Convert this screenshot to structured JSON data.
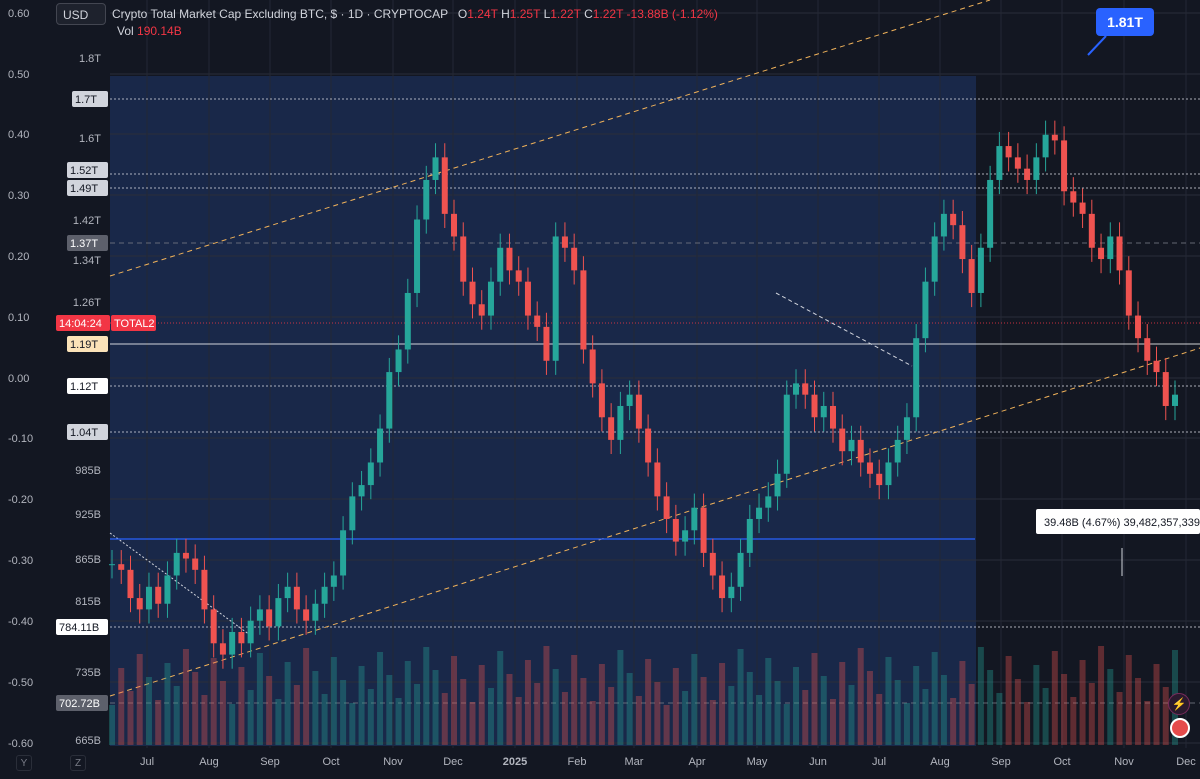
{
  "toolbar": {
    "currency_button": "USD"
  },
  "legend": {
    "title": "Crypto Total Market Cap Excluding BTC, $ · 1D · CRYPTOCAP",
    "open_label": "O",
    "open": "1.24T",
    "high_label": "H",
    "high": "1.25T",
    "low_label": "L",
    "low": "1.22T",
    "close_label": "C",
    "close": "1.22T",
    "change": "-13.88B (-1.12%)",
    "vol_label": "Vol",
    "vol": "190.14B"
  },
  "bottom_controls": {
    "y": "Y",
    "z": "Z"
  },
  "chart_data": {
    "type": "candlestick",
    "x_labels": [
      "Jul",
      "Aug",
      "Sep",
      "Oct",
      "Nov",
      "Dec",
      "2025",
      "Feb",
      "Mar",
      "Apr",
      "May",
      "Jun",
      "Jul",
      "Aug",
      "Sep",
      "Oct",
      "Nov",
      "Dec"
    ],
    "left_axis_ticks": [
      "0.60",
      "0.50",
      "0.40",
      "0.30",
      "0.20",
      "0.10",
      "0.00",
      "-0.10",
      "-0.20",
      "-0.30",
      "-0.40",
      "-0.50",
      "-0.60"
    ],
    "price_axis_ticks": [
      "1.8T",
      "1.6T",
      "1.42T",
      "1.34T",
      "1.26T",
      "985B",
      "925B",
      "865B",
      "815B",
      "735B",
      "665B"
    ],
    "price_tags": [
      {
        "text": "1.7T",
        "style": "light"
      },
      {
        "text": "1.52T",
        "style": "light"
      },
      {
        "text": "1.49T",
        "style": "light"
      },
      {
        "text": "1.37T",
        "style": "grey"
      },
      {
        "text": "14:04:24",
        "style": "red"
      },
      {
        "text": "TOTAL2",
        "style": "red_name"
      },
      {
        "text": "1.19T",
        "style": "yellow"
      },
      {
        "text": "1.12T",
        "style": "white"
      },
      {
        "text": "1.04T",
        "style": "light"
      },
      {
        "text": "784.11B",
        "style": "white"
      },
      {
        "text": "702.72B",
        "style": "grey"
      }
    ],
    "callout": "1.81T",
    "measure_label": "39.48B (4.67%) 39,482,357,339",
    "series": [
      {
        "name": "TOTAL2",
        "close": [
          0.94,
          0.93,
          0.88,
          0.86,
          0.9,
          0.87,
          0.92,
          0.96,
          0.95,
          0.93,
          0.86,
          0.8,
          0.78,
          0.82,
          0.8,
          0.84,
          0.86,
          0.83,
          0.88,
          0.9,
          0.86,
          0.84,
          0.87,
          0.9,
          0.92,
          1.0,
          1.06,
          1.08,
          1.12,
          1.18,
          1.28,
          1.32,
          1.42,
          1.55,
          1.62,
          1.66,
          1.56,
          1.52,
          1.44,
          1.4,
          1.38,
          1.44,
          1.5,
          1.46,
          1.44,
          1.38,
          1.36,
          1.3,
          1.52,
          1.5,
          1.46,
          1.32,
          1.26,
          1.2,
          1.16,
          1.22,
          1.24,
          1.18,
          1.12,
          1.06,
          1.02,
          0.98,
          1.0,
          1.04,
          0.96,
          0.92,
          0.88,
          0.9,
          0.96,
          1.02,
          1.04,
          1.06,
          1.1,
          1.24,
          1.26,
          1.24,
          1.2,
          1.22,
          1.18,
          1.14,
          1.16,
          1.12,
          1.1,
          1.08,
          1.12,
          1.16,
          1.2,
          1.34,
          1.44,
          1.52,
          1.56,
          1.54,
          1.48,
          1.42,
          1.5,
          1.62,
          1.68,
          1.66,
          1.64,
          1.62,
          1.66,
          1.7,
          1.69,
          1.6,
          1.58,
          1.56,
          1.5,
          1.48,
          1.52,
          1.46,
          1.38,
          1.34,
          1.3,
          1.28,
          1.22,
          1.24
        ]
      }
    ]
  }
}
